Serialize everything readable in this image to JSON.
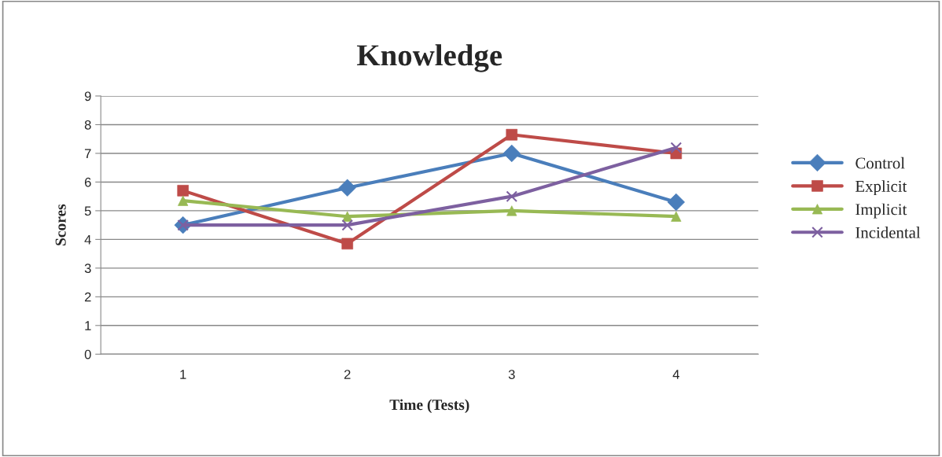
{
  "chart_data": {
    "type": "line",
    "title": "Knowledge",
    "xlabel": "Time (Tests)",
    "ylabel": "Scores",
    "categories": [
      "1",
      "2",
      "3",
      "4"
    ],
    "series": [
      {
        "name": "Control",
        "color": "#4a7ebb",
        "marker": "diamond",
        "values": [
          4.5,
          5.8,
          7.0,
          5.3
        ]
      },
      {
        "name": "Explicit",
        "color": "#be4b48",
        "marker": "square",
        "values": [
          5.7,
          3.85,
          7.65,
          7.0
        ]
      },
      {
        "name": "Implicit",
        "color": "#98b954",
        "marker": "triangle",
        "values": [
          5.35,
          4.8,
          5.0,
          4.8
        ]
      },
      {
        "name": "Incidental",
        "color": "#7d60a0",
        "marker": "cross",
        "values": [
          4.5,
          4.5,
          5.5,
          7.2
        ]
      }
    ],
    "ylim": [
      0,
      9
    ],
    "yticks": [
      0,
      1,
      2,
      3,
      4,
      5,
      6,
      7,
      8,
      9
    ],
    "grid": "y",
    "legend": "right",
    "line_style": "solid"
  }
}
